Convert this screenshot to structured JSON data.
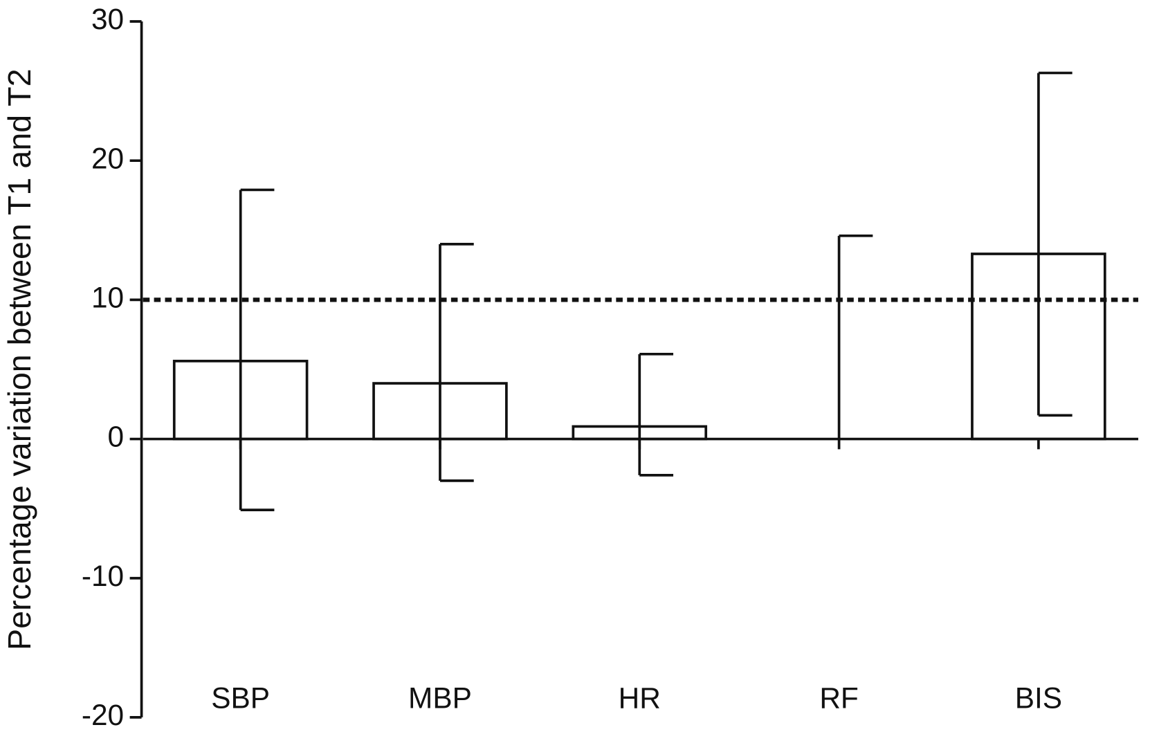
{
  "chart_data": {
    "type": "bar",
    "ylabel": "Percentage variation between T1 and T2",
    "categories": [
      "SBP",
      "MBP",
      "HR",
      "RF",
      "BIS"
    ],
    "values": [
      5.6,
      4.0,
      0.9,
      0,
      13.3
    ],
    "upper": [
      17.9,
      14.0,
      6.1,
      14.6,
      26.3
    ],
    "lower": [
      -5.1,
      -3.0,
      -2.6,
      null,
      1.7
    ],
    "reference_line": 10,
    "color": "#111111",
    "ylim": [
      -20,
      30
    ],
    "yticks": [
      -20,
      -10,
      0,
      10,
      20,
      30
    ]
  }
}
